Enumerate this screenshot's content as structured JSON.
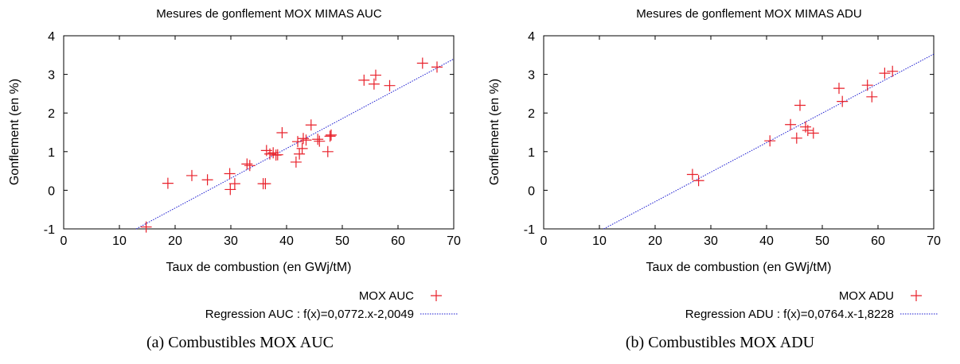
{
  "chart_data": [
    {
      "type": "scatter",
      "title": "Mesures de gonflement MOX MIMAS AUC",
      "xlabel": "Taux de combustion (en GWj/tM)",
      "ylabel": "Gonflement (en %)",
      "xlim": [
        0,
        70
      ],
      "ylim": [
        -1,
        4
      ],
      "xticks": [
        "0",
        "10",
        "20",
        "30",
        "40",
        "50",
        "60",
        "70"
      ],
      "yticks": [
        "-1",
        "0",
        "1",
        "2",
        "3",
        "4"
      ],
      "grid": false,
      "legend_position": "bottom-right",
      "caption": "(a)  Combustibles MOX AUC",
      "points_label": "MOX AUC",
      "regression_label": "Regression AUC : f(x)=0,0772.x-2,0049",
      "regression": {
        "slope": 0.0772,
        "intercept": -2.0049
      },
      "colors": {
        "points": "#e8202a",
        "regression": "#1a1ad0"
      },
      "points": [
        [
          14.8,
          -0.95
        ],
        [
          18.7,
          0.18
        ],
        [
          23.0,
          0.38
        ],
        [
          25.8,
          0.27
        ],
        [
          29.8,
          0.43
        ],
        [
          29.9,
          0.02
        ],
        [
          30.7,
          0.17
        ],
        [
          32.9,
          0.68
        ],
        [
          33.4,
          0.64
        ],
        [
          35.8,
          0.17
        ],
        [
          36.2,
          0.17
        ],
        [
          36.4,
          1.03
        ],
        [
          37.0,
          0.94
        ],
        [
          37.6,
          0.97
        ],
        [
          38.1,
          0.91
        ],
        [
          38.4,
          0.92
        ],
        [
          39.2,
          1.49
        ],
        [
          41.7,
          0.73
        ],
        [
          42.0,
          1.26
        ],
        [
          42.3,
          0.94
        ],
        [
          42.8,
          1.08
        ],
        [
          43.0,
          1.34
        ],
        [
          43.5,
          1.3
        ],
        [
          44.4,
          1.69
        ],
        [
          45.6,
          1.32
        ],
        [
          45.9,
          1.27
        ],
        [
          47.4,
          1.0
        ],
        [
          47.8,
          1.4
        ],
        [
          48.0,
          1.43
        ],
        [
          53.9,
          2.85
        ],
        [
          55.7,
          2.75
        ],
        [
          56.0,
          2.98
        ],
        [
          58.5,
          2.71
        ],
        [
          64.4,
          3.29
        ],
        [
          67.0,
          3.19
        ]
      ]
    },
    {
      "type": "scatter",
      "title": "Mesures de gonflement MOX MIMAS ADU",
      "xlabel": "Taux de combustion (en GWj/tM)",
      "ylabel": "Gonflement (en %)",
      "xlim": [
        0,
        70
      ],
      "ylim": [
        -1,
        4
      ],
      "xticks": [
        "0",
        "10",
        "20",
        "30",
        "40",
        "50",
        "60",
        "70"
      ],
      "yticks": [
        "-1",
        "0",
        "1",
        "2",
        "3",
        "4"
      ],
      "grid": false,
      "legend_position": "bottom-right",
      "caption": "(b)  Combustibles MOX ADU",
      "points_label": "MOX ADU",
      "regression_label": "Regression ADU : f(x)=0,0764.x-1,8228",
      "regression": {
        "slope": 0.0764,
        "intercept": -1.8228
      },
      "colors": {
        "points": "#e8202a",
        "regression": "#1a1ad0"
      },
      "points": [
        [
          26.7,
          0.41
        ],
        [
          27.8,
          0.25
        ],
        [
          40.6,
          1.28
        ],
        [
          44.3,
          1.7
        ],
        [
          45.4,
          1.35
        ],
        [
          46.0,
          2.2
        ],
        [
          47.0,
          1.64
        ],
        [
          47.4,
          1.55
        ],
        [
          48.4,
          1.48
        ],
        [
          53.0,
          2.64
        ],
        [
          53.6,
          2.3
        ],
        [
          58.1,
          2.72
        ],
        [
          58.9,
          2.42
        ],
        [
          61.2,
          3.03
        ],
        [
          62.6,
          3.08
        ]
      ]
    }
  ]
}
